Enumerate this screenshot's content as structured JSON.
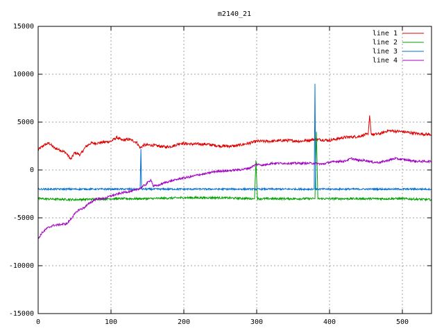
{
  "chart_data": {
    "type": "line",
    "title": "m2140_21",
    "xlabel": "",
    "ylabel": "",
    "xlim": [
      0,
      540
    ],
    "ylim": [
      -15000,
      15000
    ],
    "x_ticks": [
      0,
      100,
      200,
      300,
      400,
      500
    ],
    "y_ticks": [
      -15000,
      -10000,
      -5000,
      0,
      5000,
      10000,
      15000
    ],
    "grid": true,
    "legend_position": "top-right",
    "series": [
      {
        "name": "line 1",
        "color": "#e00000",
        "noise": 150,
        "points": [
          [
            0,
            2100
          ],
          [
            8,
            2600
          ],
          [
            15,
            2800
          ],
          [
            22,
            2300
          ],
          [
            30,
            2100
          ],
          [
            38,
            1800
          ],
          [
            45,
            1100
          ],
          [
            50,
            1800
          ],
          [
            58,
            1600
          ],
          [
            65,
            2400
          ],
          [
            72,
            2800
          ],
          [
            80,
            2800
          ],
          [
            90,
            2900
          ],
          [
            100,
            3000
          ],
          [
            108,
            3400
          ],
          [
            115,
            3100
          ],
          [
            125,
            3200
          ],
          [
            135,
            2900
          ],
          [
            140,
            2300
          ],
          [
            145,
            2600
          ],
          [
            155,
            2600
          ],
          [
            165,
            2500
          ],
          [
            175,
            2400
          ],
          [
            185,
            2500
          ],
          [
            195,
            2800
          ],
          [
            210,
            2700
          ],
          [
            230,
            2700
          ],
          [
            250,
            2500
          ],
          [
            270,
            2500
          ],
          [
            290,
            2800
          ],
          [
            300,
            3000
          ],
          [
            320,
            3000
          ],
          [
            340,
            3100
          ],
          [
            360,
            3000
          ],
          [
            380,
            3200
          ],
          [
            400,
            3100
          ],
          [
            420,
            3400
          ],
          [
            440,
            3500
          ],
          [
            450,
            3700
          ],
          [
            453,
            3700
          ],
          [
            455,
            5700
          ],
          [
            457,
            3800
          ],
          [
            460,
            3700
          ],
          [
            470,
            3800
          ],
          [
            480,
            4100
          ],
          [
            500,
            4000
          ],
          [
            520,
            3800
          ],
          [
            540,
            3700
          ]
        ]
      },
      {
        "name": "line 2",
        "color": "#00a000",
        "noise": 110,
        "points": [
          [
            0,
            -3000
          ],
          [
            50,
            -3100
          ],
          [
            100,
            -3000
          ],
          [
            150,
            -3000
          ],
          [
            200,
            -2900
          ],
          [
            250,
            -2900
          ],
          [
            295,
            -3000
          ],
          [
            297,
            -3000
          ],
          [
            299,
            1000
          ],
          [
            301,
            -3000
          ],
          [
            350,
            -3000
          ],
          [
            378,
            -3000
          ],
          [
            380,
            -3000
          ],
          [
            382,
            4000
          ],
          [
            384,
            -3000
          ],
          [
            400,
            -3000
          ],
          [
            450,
            -3000
          ],
          [
            500,
            -3000
          ],
          [
            540,
            -3100
          ]
        ]
      },
      {
        "name": "line 3",
        "color": "#0070d0",
        "noise": 90,
        "points": [
          [
            0,
            -2000
          ],
          [
            50,
            -2000
          ],
          [
            100,
            -2000
          ],
          [
            138,
            -2000
          ],
          [
            140,
            -2000
          ],
          [
            141,
            2200
          ],
          [
            142,
            -2000
          ],
          [
            150,
            -2000
          ],
          [
            200,
            -2000
          ],
          [
            250,
            -2000
          ],
          [
            300,
            -2000
          ],
          [
            350,
            -2000
          ],
          [
            377,
            -2000
          ],
          [
            379,
            -2000
          ],
          [
            380,
            9000
          ],
          [
            381,
            -2000
          ],
          [
            400,
            -2000
          ],
          [
            450,
            -2000
          ],
          [
            500,
            -2000
          ],
          [
            540,
            -2000
          ]
        ]
      },
      {
        "name": "line 4",
        "color": "#a000c0",
        "noise": 110,
        "points": [
          [
            0,
            -7200
          ],
          [
            5,
            -6600
          ],
          [
            12,
            -6100
          ],
          [
            20,
            -5800
          ],
          [
            30,
            -5700
          ],
          [
            40,
            -5600
          ],
          [
            48,
            -4800
          ],
          [
            55,
            -4200
          ],
          [
            62,
            -4000
          ],
          [
            70,
            -3500
          ],
          [
            80,
            -3000
          ],
          [
            90,
            -3000
          ],
          [
            100,
            -2700
          ],
          [
            110,
            -2500
          ],
          [
            120,
            -2300
          ],
          [
            130,
            -2200
          ],
          [
            140,
            -1900
          ],
          [
            148,
            -1500
          ],
          [
            155,
            -1000
          ],
          [
            158,
            -1700
          ],
          [
            165,
            -1600
          ],
          [
            175,
            -1300
          ],
          [
            185,
            -1100
          ],
          [
            195,
            -900
          ],
          [
            210,
            -700
          ],
          [
            220,
            -500
          ],
          [
            230,
            -400
          ],
          [
            240,
            -200
          ],
          [
            250,
            -100
          ],
          [
            260,
            -100
          ],
          [
            270,
            0
          ],
          [
            280,
            50
          ],
          [
            290,
            200
          ],
          [
            295,
            400
          ],
          [
            300,
            600
          ],
          [
            310,
            500
          ],
          [
            320,
            700
          ],
          [
            340,
            700
          ],
          [
            360,
            700
          ],
          [
            380,
            700
          ],
          [
            390,
            600
          ],
          [
            400,
            800
          ],
          [
            410,
            900
          ],
          [
            420,
            900
          ],
          [
            430,
            1200
          ],
          [
            440,
            1000
          ],
          [
            450,
            1000
          ],
          [
            460,
            800
          ],
          [
            470,
            800
          ],
          [
            480,
            1000
          ],
          [
            490,
            1200
          ],
          [
            500,
            1100
          ],
          [
            510,
            1000
          ],
          [
            520,
            900
          ],
          [
            530,
            900
          ],
          [
            540,
            900
          ]
        ]
      }
    ]
  }
}
